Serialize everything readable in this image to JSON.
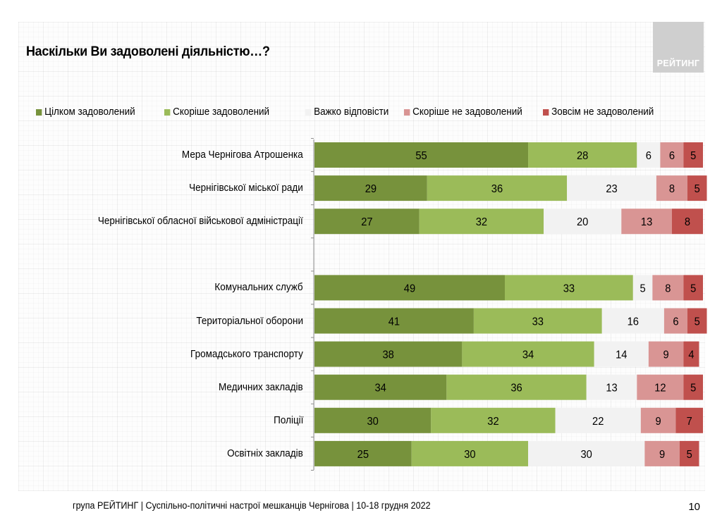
{
  "header": {
    "title": "Наскільки Ви задоволені діяльністю…?",
    "logo_text": "РЕЙТИНГ"
  },
  "footer": {
    "text": "група РЕЙТИНГ  | Суспільно-політичні настрої мешканців Чернігова | 10-18 грудня 2022",
    "page_number": "10"
  },
  "chart_data": {
    "type": "bar",
    "orientation": "horizontal",
    "stacked": true,
    "title": "Наскільки Ви задоволені діяльністю…?",
    "xlabel": "",
    "ylabel": "",
    "xlim": [
      0,
      100
    ],
    "grid": false,
    "legend_position": "top",
    "categories": [
      "Мера Чернігова Атрошенка",
      "Чернігівської міської ради",
      "Чернігівської обласної військової адміністрації",
      "",
      "Комунальних служб",
      "Територіальної оборони",
      "Громадського транспорту",
      "Медичних закладів",
      "Поліції",
      "Освітніх закладів"
    ],
    "series": [
      {
        "name": "Цілком задоволений",
        "color": "#77923c",
        "label_color": "#000000",
        "values": [
          55,
          29,
          27,
          null,
          49,
          41,
          38,
          34,
          30,
          25
        ]
      },
      {
        "name": "Скоріше задоволений",
        "color": "#9bbb59",
        "label_color": "#000000",
        "values": [
          28,
          36,
          32,
          null,
          33,
          33,
          34,
          36,
          32,
          30
        ]
      },
      {
        "name": "Важко відповісти",
        "color": "#f2f2f2",
        "label_color": "#000000",
        "values": [
          6,
          23,
          20,
          null,
          5,
          16,
          14,
          13,
          22,
          30
        ]
      },
      {
        "name": "Скоріше не задоволений",
        "color": "#d99594",
        "label_color": "#000000",
        "values": [
          6,
          8,
          13,
          null,
          8,
          6,
          9,
          12,
          9,
          9
        ]
      },
      {
        "name": "Зовсім не задоволений",
        "color": "#c0504d",
        "label_color": "#000000",
        "values": [
          5,
          5,
          8,
          null,
          5,
          5,
          4,
          5,
          7,
          5
        ]
      }
    ]
  }
}
